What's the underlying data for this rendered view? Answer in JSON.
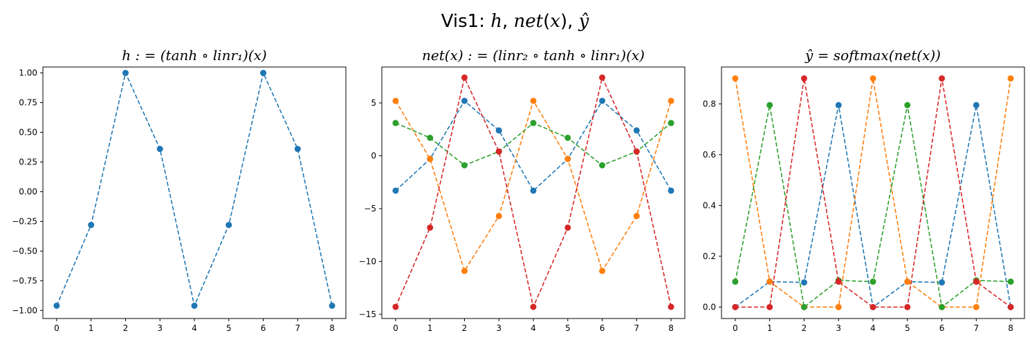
{
  "figure": {
    "title": "Vis1: h, net(x), ŷ"
  },
  "colors": {
    "blue": "#1f77b4",
    "orange": "#ff7f0e",
    "green": "#2ca02c",
    "red": "#d62728"
  },
  "chart_data": [
    {
      "type": "line",
      "title": "h : = (tanh ∘ linr₁)(x)",
      "x": [
        0,
        1,
        2,
        3,
        4,
        5,
        6,
        7,
        8
      ],
      "xticks": [
        "0",
        "1",
        "2",
        "3",
        "4",
        "5",
        "6",
        "7",
        "8"
      ],
      "yticks": [
        "−1.00",
        "−0.75",
        "−0.50",
        "−0.25",
        "0.00",
        "0.25",
        "0.50",
        "0.75",
        "1.00"
      ],
      "ytick_values": [
        -1.0,
        -0.75,
        -0.5,
        -0.25,
        0.0,
        0.25,
        0.5,
        0.75,
        1.0
      ],
      "xlim": [
        -0.4,
        8.4
      ],
      "ylim": [
        -1.068,
        1.05
      ],
      "grid": false,
      "series": [
        {
          "color": "#1f77b4",
          "style": "dashed",
          "marker": "circle",
          "values": [
            -0.96,
            -0.28,
            1.0,
            0.36,
            -0.96,
            -0.28,
            1.0,
            0.36,
            -0.96
          ]
        }
      ]
    },
    {
      "type": "line",
      "title": "net(x) : = (linr₂ ∘ tanh ∘ linr₁)(x)",
      "x": [
        0,
        1,
        2,
        3,
        4,
        5,
        6,
        7,
        8
      ],
      "xticks": [
        "0",
        "1",
        "2",
        "3",
        "4",
        "5",
        "6",
        "7",
        "8"
      ],
      "yticks": [
        "−15",
        "−10",
        "−5",
        "0",
        "5"
      ],
      "ytick_values": [
        -15,
        -10,
        -5,
        0,
        5
      ],
      "xlim": [
        -0.4,
        8.4
      ],
      "ylim": [
        -15.4,
        8.4
      ],
      "grid": false,
      "series": [
        {
          "color": "#1f77b4",
          "style": "dashed",
          "marker": "circle",
          "values": [
            -3.3,
            -0.3,
            5.2,
            2.4,
            -3.3,
            -0.3,
            5.2,
            2.4,
            -3.3
          ]
        },
        {
          "color": "#ff7f0e",
          "style": "dashed",
          "marker": "circle",
          "values": [
            5.2,
            -0.3,
            -10.9,
            -5.7,
            5.2,
            -0.3,
            -10.9,
            -5.7,
            5.2
          ]
        },
        {
          "color": "#2ca02c",
          "style": "dashed",
          "marker": "circle",
          "values": [
            3.1,
            1.7,
            -0.9,
            0.4,
            3.1,
            1.7,
            -0.9,
            0.4,
            3.1
          ]
        },
        {
          "color": "#d62728",
          "style": "dashed",
          "marker": "circle",
          "values": [
            -14.3,
            -6.8,
            7.4,
            0.4,
            -14.3,
            -6.8,
            7.4,
            0.4,
            -14.3
          ]
        }
      ]
    },
    {
      "type": "line",
      "title": "ŷ = softmax(net(x))",
      "x": [
        0,
        1,
        2,
        3,
        4,
        5,
        6,
        7,
        8
      ],
      "xticks": [
        "0",
        "1",
        "2",
        "3",
        "4",
        "5",
        "6",
        "7",
        "8"
      ],
      "yticks": [
        "0.0",
        "0.2",
        "0.4",
        "0.6",
        "0.8"
      ],
      "ytick_values": [
        0.0,
        0.2,
        0.4,
        0.6,
        0.8
      ],
      "xlim": [
        -0.4,
        8.4
      ],
      "ylim": [
        -0.045,
        0.945
      ],
      "grid": false,
      "series": [
        {
          "color": "#1f77b4",
          "style": "dashed",
          "marker": "circle",
          "values": [
            0.0,
            0.1,
            0.097,
            0.795,
            0.0,
            0.1,
            0.097,
            0.795,
            0.0
          ]
        },
        {
          "color": "#ff7f0e",
          "style": "dashed",
          "marker": "circle",
          "values": [
            0.9,
            0.1,
            0.0,
            0.0,
            0.9,
            0.1,
            0.0,
            0.0,
            0.9
          ]
        },
        {
          "color": "#2ca02c",
          "style": "dashed",
          "marker": "circle",
          "values": [
            0.1,
            0.795,
            0.0,
            0.105,
            0.1,
            0.795,
            0.0,
            0.105,
            0.1
          ]
        },
        {
          "color": "#d62728",
          "style": "dashed",
          "marker": "circle",
          "values": [
            0.0,
            0.0,
            0.9,
            0.1,
            0.0,
            0.0,
            0.9,
            0.1,
            0.0
          ]
        }
      ]
    }
  ]
}
